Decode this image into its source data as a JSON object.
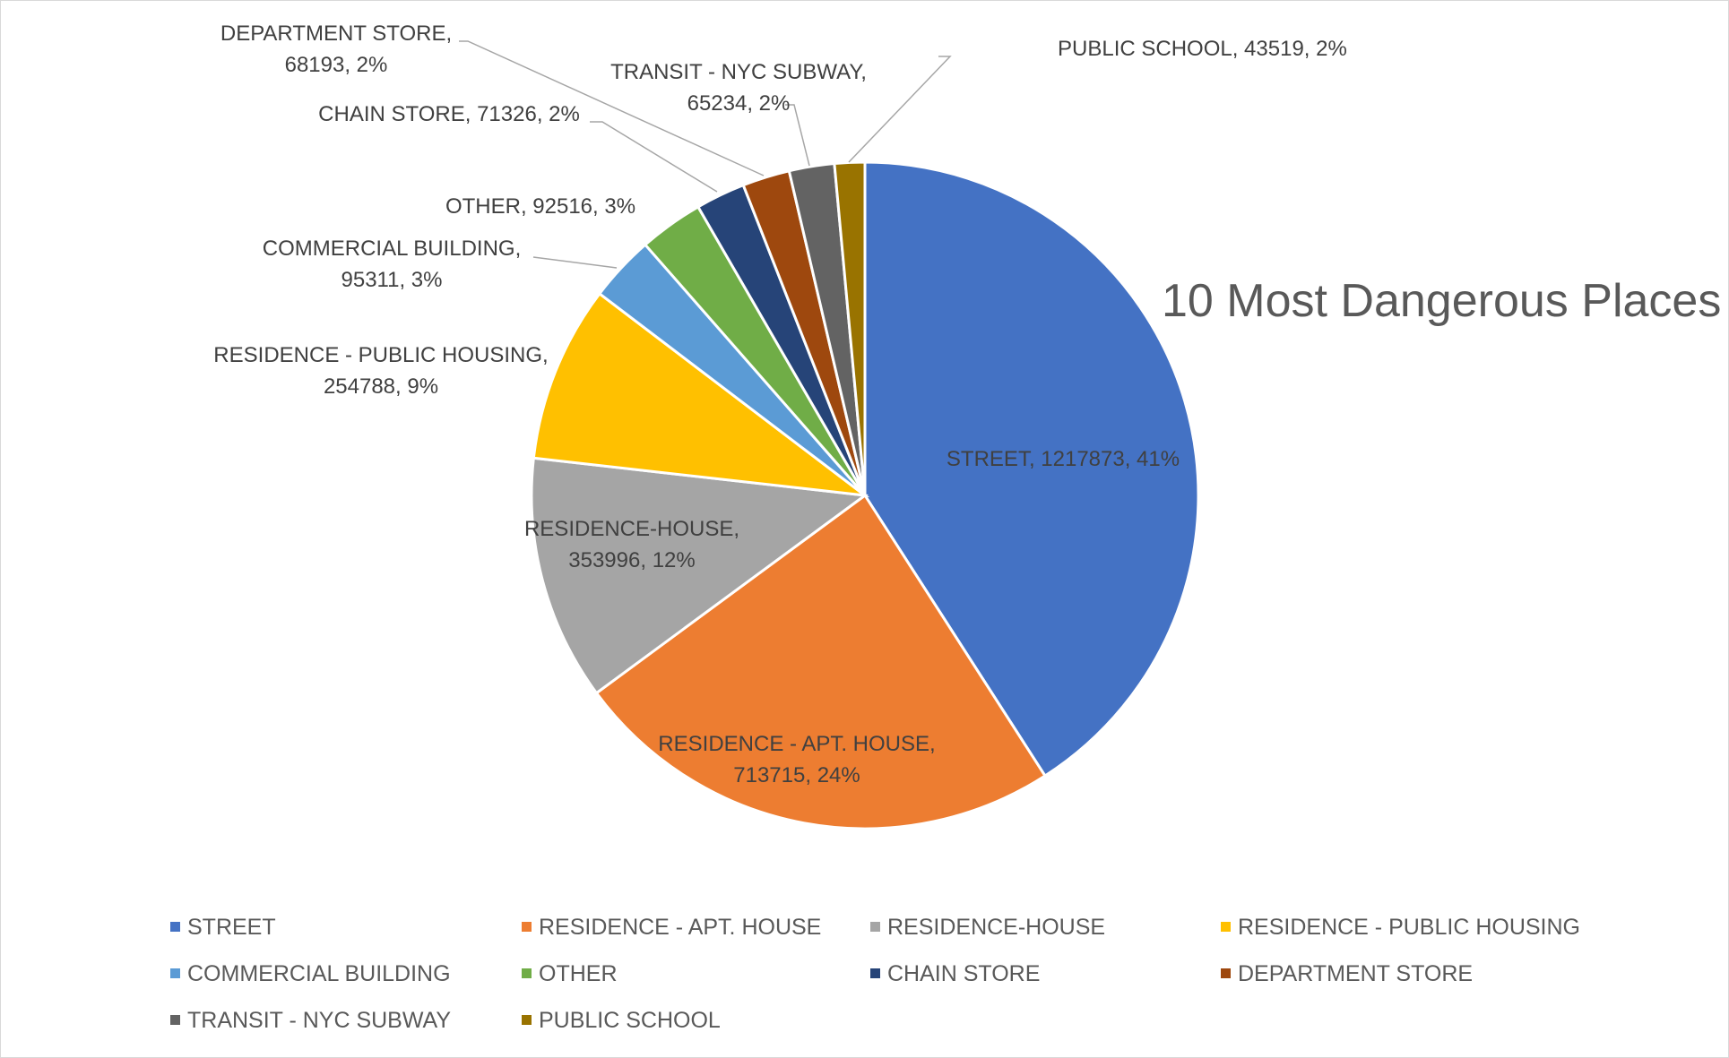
{
  "chart_data": {
    "type": "pie",
    "title": "10 Most Dangerous Places",
    "slices": [
      {
        "label": "STREET",
        "value": 1217873,
        "percent": "41%",
        "color": "#4472c4",
        "data_label": [
          "STREET, 1217873, 41%"
        ]
      },
      {
        "label": "RESIDENCE - APT. HOUSE",
        "value": 713715,
        "percent": "24%",
        "color": "#ed7d31",
        "data_label": [
          "RESIDENCE - APT. HOUSE,",
          "713715, 24%"
        ]
      },
      {
        "label": "RESIDENCE-HOUSE",
        "value": 353996,
        "percent": "12%",
        "color": "#a5a5a5",
        "data_label": [
          "RESIDENCE-HOUSE,",
          "353996, 12%"
        ]
      },
      {
        "label": "RESIDENCE - PUBLIC HOUSING",
        "value": 254788,
        "percent": "9%",
        "color": "#ffc000",
        "data_label": [
          "RESIDENCE - PUBLIC HOUSING,",
          "254788, 9%"
        ]
      },
      {
        "label": "COMMERCIAL BUILDING",
        "value": 95311,
        "percent": "3%",
        "color": "#5b9bd5",
        "data_label": [
          "COMMERCIAL BUILDING,",
          "95311, 3%"
        ]
      },
      {
        "label": "OTHER",
        "value": 92516,
        "percent": "3%",
        "color": "#70ad47",
        "data_label": [
          "OTHER, 92516, 3%"
        ]
      },
      {
        "label": "CHAIN STORE",
        "value": 71326,
        "percent": "2%",
        "color": "#264478",
        "data_label": [
          "CHAIN STORE, 71326, 2%"
        ]
      },
      {
        "label": "DEPARTMENT STORE",
        "value": 68193,
        "percent": "2%",
        "color": "#9e480e",
        "data_label": [
          "DEPARTMENT STORE,",
          "68193, 2%"
        ]
      },
      {
        "label": "TRANSIT - NYC SUBWAY",
        "value": 65234,
        "percent": "2%",
        "color": "#636363",
        "data_label": [
          "TRANSIT - NYC SUBWAY,",
          "65234, 2%"
        ]
      },
      {
        "label": "PUBLIC SCHOOL",
        "value": 43519,
        "percent": "2%",
        "color": "#997300",
        "data_label": [
          "PUBLIC SCHOOL, 43519, 2%"
        ]
      }
    ],
    "legend": {
      "placement": "bottom",
      "entries": [
        "STREET",
        "RESIDENCE - APT. HOUSE",
        "RESIDENCE-HOUSE",
        "RESIDENCE - PUBLIC HOUSING",
        "COMMERCIAL BUILDING",
        "OTHER",
        "CHAIN STORE",
        "DEPARTMENT STORE",
        "TRANSIT - NYC SUBWAY",
        "PUBLIC SCHOOL"
      ]
    }
  }
}
